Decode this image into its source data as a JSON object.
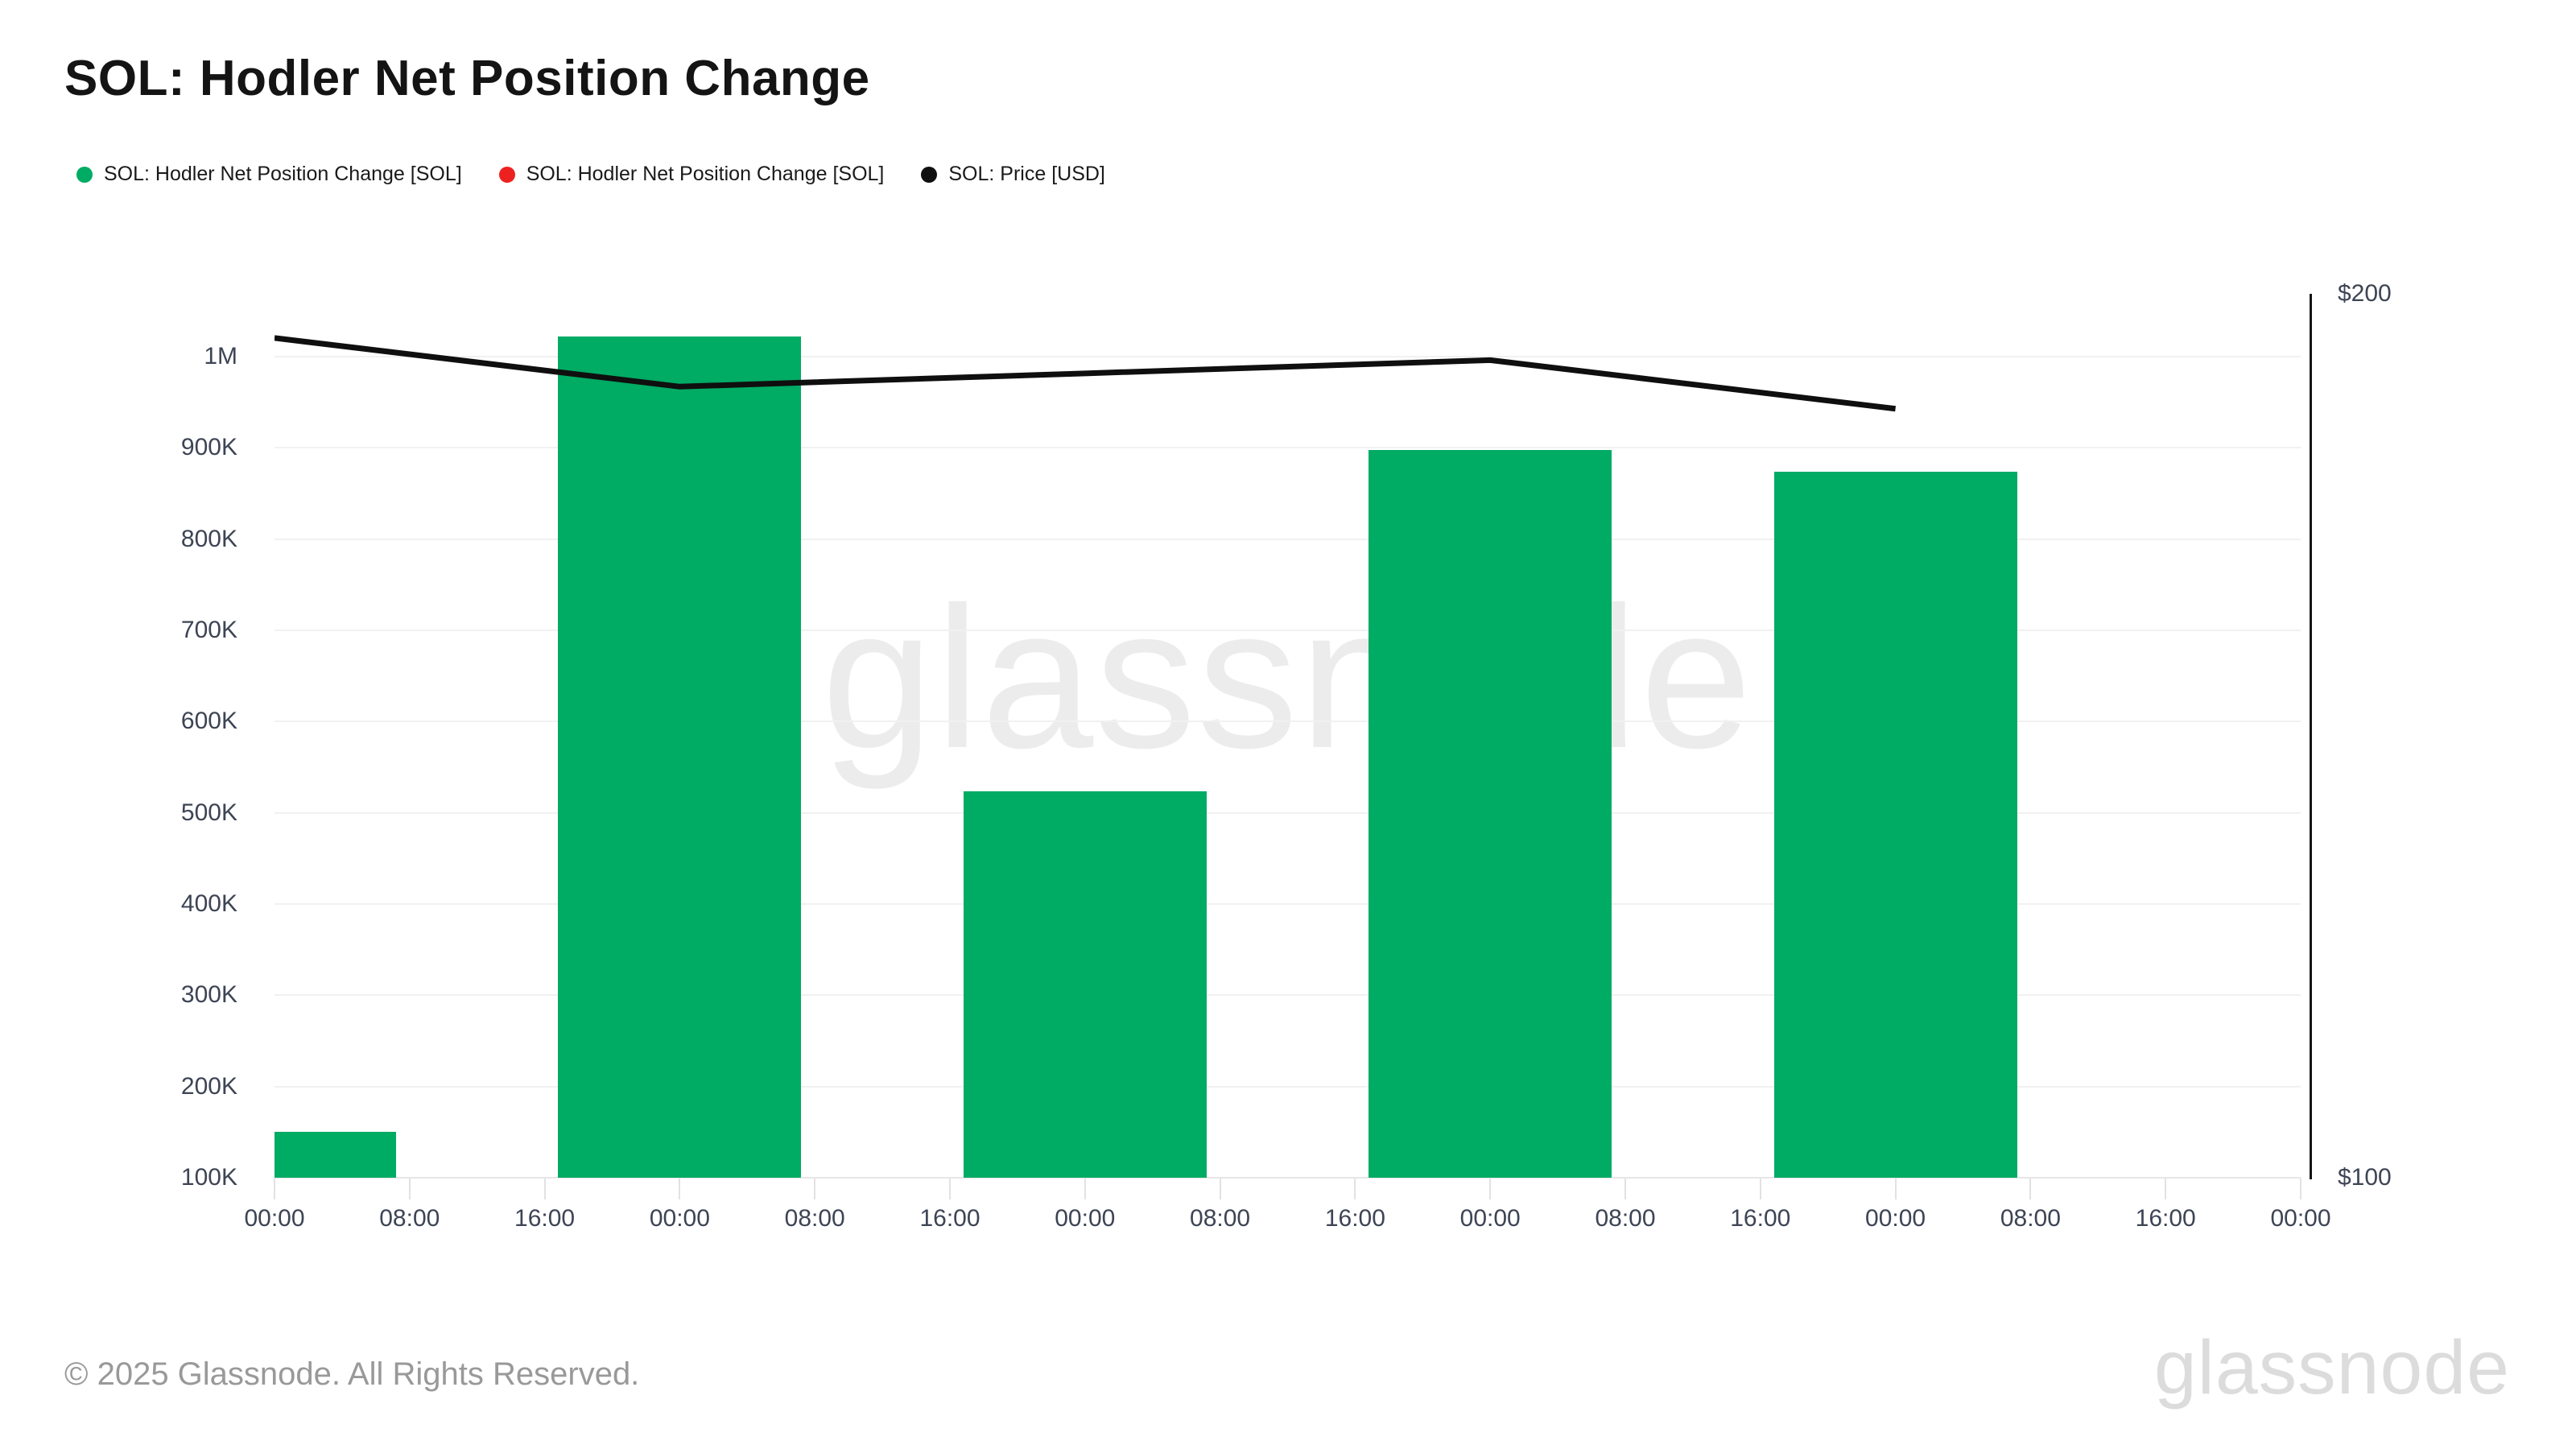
{
  "header": {
    "title": "SOL: Hodler Net Position Change"
  },
  "legend": {
    "items": [
      {
        "label": "SOL: Hodler Net Position Change [SOL]",
        "color": "#00ab64",
        "marker": "circle-icon"
      },
      {
        "label": "SOL: Hodler Net Position Change [SOL]",
        "color": "#ee2121",
        "marker": "circle-icon"
      },
      {
        "label": "SOL: Price [USD]",
        "color": "#0f0f0f",
        "marker": "circle-icon"
      }
    ]
  },
  "watermark": {
    "text": "glassnode"
  },
  "footer": {
    "copyright": "© 2025 Glassnode. All Rights Reserved.",
    "logo": "glassnode"
  },
  "chart_data": {
    "type": "bar+line",
    "title": "SOL: Hodler Net Position Change",
    "grid": true,
    "x_axis": {
      "tick_interval": "8h",
      "days_shown": 5,
      "tick_labels": [
        "00:00",
        "08:00",
        "16:00",
        "00:00",
        "08:00",
        "16:00",
        "00:00",
        "08:00",
        "16:00",
        "00:00",
        "08:00",
        "16:00",
        "00:00",
        "08:00",
        "16:00",
        "00:00"
      ]
    },
    "left_axis": {
      "unit": "SOL",
      "tick_labels": [
        "100K",
        "200K",
        "300K",
        "400K",
        "500K",
        "600K",
        "700K",
        "800K",
        "900K",
        "1M"
      ],
      "tick_values": [
        100000,
        200000,
        300000,
        400000,
        500000,
        600000,
        700000,
        800000,
        900000,
        1000000
      ],
      "ylim": [
        100000,
        1069000
      ]
    },
    "right_axis": {
      "unit": "USD",
      "tick_labels": [
        "$100",
        "$200"
      ],
      "tick_values": [
        100,
        200
      ],
      "ylim": [
        100,
        200
      ]
    },
    "bars": {
      "name": "SOL: Hodler Net Position Change [SOL]",
      "color": "#00ab64",
      "day_centers": [
        0,
        1,
        2,
        3,
        4
      ],
      "values": [
        150000,
        1022000,
        524000,
        898000,
        874000
      ]
    },
    "line": {
      "name": "SOL: Price [USD]",
      "color": "#0f0f0f",
      "day_points": [
        0,
        1,
        2,
        3,
        4
      ],
      "values": [
        195,
        189.5,
        191,
        192.5,
        187
      ]
    }
  }
}
